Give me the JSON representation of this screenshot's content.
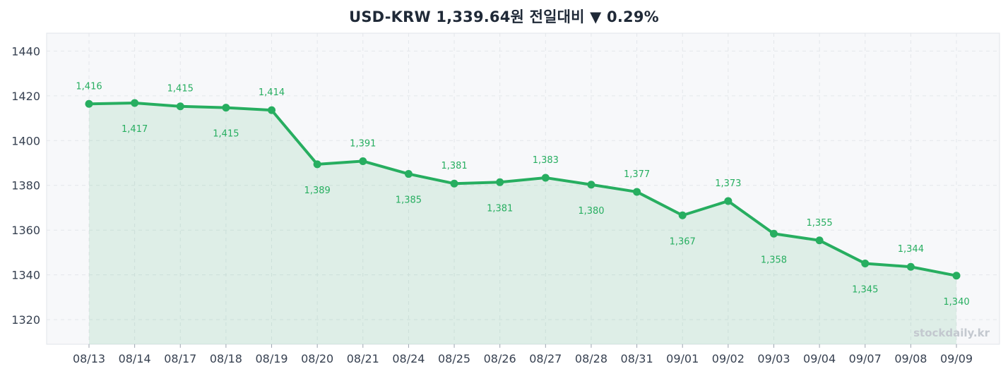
{
  "chart_data": {
    "type": "line",
    "title": "USD-KRW  1,339.64원  전일대비 ▼ 0.29%",
    "categories": [
      "08/13",
      "08/14",
      "08/17",
      "08/18",
      "08/19",
      "08/20",
      "08/21",
      "08/24",
      "08/25",
      "08/26",
      "08/27",
      "08/28",
      "08/31",
      "09/01",
      "09/02",
      "09/03",
      "09/04",
      "09/07",
      "09/08",
      "09/09"
    ],
    "series": [
      {
        "values": [
          1416.4,
          1416.8,
          1415.3,
          1414.7,
          1413.6,
          1389.4,
          1390.8,
          1385.1,
          1380.8,
          1381.4,
          1383.4,
          1380.3,
          1377.1,
          1366.6,
          1373.0,
          1358.4,
          1355.4,
          1345.1,
          1343.6,
          1339.64
        ],
        "data_labels": [
          "1,416",
          "1,417",
          "1,415",
          "1,415",
          "1,414",
          "1,389",
          "1,391",
          "1,385",
          "1,381",
          "1,381",
          "1,383",
          "1,380",
          "1,377",
          "1,367",
          "1,373",
          "1,358",
          "1,355",
          "1,345",
          "1,344",
          "1,340"
        ],
        "color": "#27ae60"
      }
    ],
    "yticks": [
      1320,
      1340,
      1360,
      1380,
      1400,
      1420,
      1440
    ],
    "ylim": [
      1309,
      1448
    ],
    "grid": true,
    "fill_color": "#27ae60",
    "plot_bg": "#f7f8fa",
    "watermark": "stockdaily.kr"
  }
}
